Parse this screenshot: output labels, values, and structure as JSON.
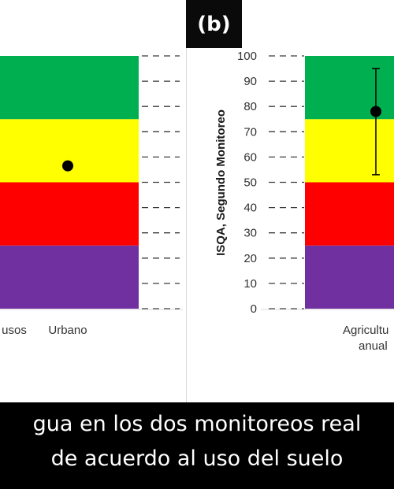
{
  "panel_label": "(b)",
  "caption": {
    "line1": "gua en los dos monitoreos real",
    "line2": "de acuerdo al uso del suelo"
  },
  "colors": {
    "bands": [
      "#7030a0",
      "#ff0000",
      "#ffff00",
      "#00b050"
    ],
    "point": "#000000",
    "axis": "#d9d9d9"
  },
  "chart_data": [
    {
      "type": "scatter",
      "title": "",
      "ylabel": "",
      "ylim": [
        0,
        100
      ],
      "grid": false,
      "categories": [
        "usos",
        "Urbano"
      ],
      "bands": [
        {
          "from": 0,
          "to": 25,
          "color": "#7030a0"
        },
        {
          "from": 25,
          "to": 50,
          "color": "#ff0000"
        },
        {
          "from": 50,
          "to": 75,
          "color": "#ffff00"
        },
        {
          "from": 75,
          "to": 100,
          "color": "#00b050"
        }
      ],
      "points": [
        {
          "category": "usos",
          "y": 66
        },
        {
          "category": "Urbano",
          "y": 56.5
        }
      ]
    },
    {
      "type": "scatter",
      "title": "",
      "ylabel": "ISQA, Segundo Monitoreo",
      "ylim": [
        0,
        100
      ],
      "yticks": [
        0,
        10,
        20,
        30,
        40,
        50,
        60,
        70,
        80,
        90,
        100
      ],
      "grid": false,
      "categories": [
        "Agricultu anual"
      ],
      "category_lines": [
        [
          "Agricultu",
          "anual"
        ]
      ],
      "bands": [
        {
          "from": 0,
          "to": 25,
          "color": "#7030a0"
        },
        {
          "from": 25,
          "to": 50,
          "color": "#ff0000"
        },
        {
          "from": 50,
          "to": 75,
          "color": "#ffff00"
        },
        {
          "from": 75,
          "to": 100,
          "color": "#00b050"
        }
      ],
      "points": [
        {
          "category": "Agricultu anual",
          "y": 78,
          "err_low": 53,
          "err_high": 95
        }
      ]
    }
  ]
}
